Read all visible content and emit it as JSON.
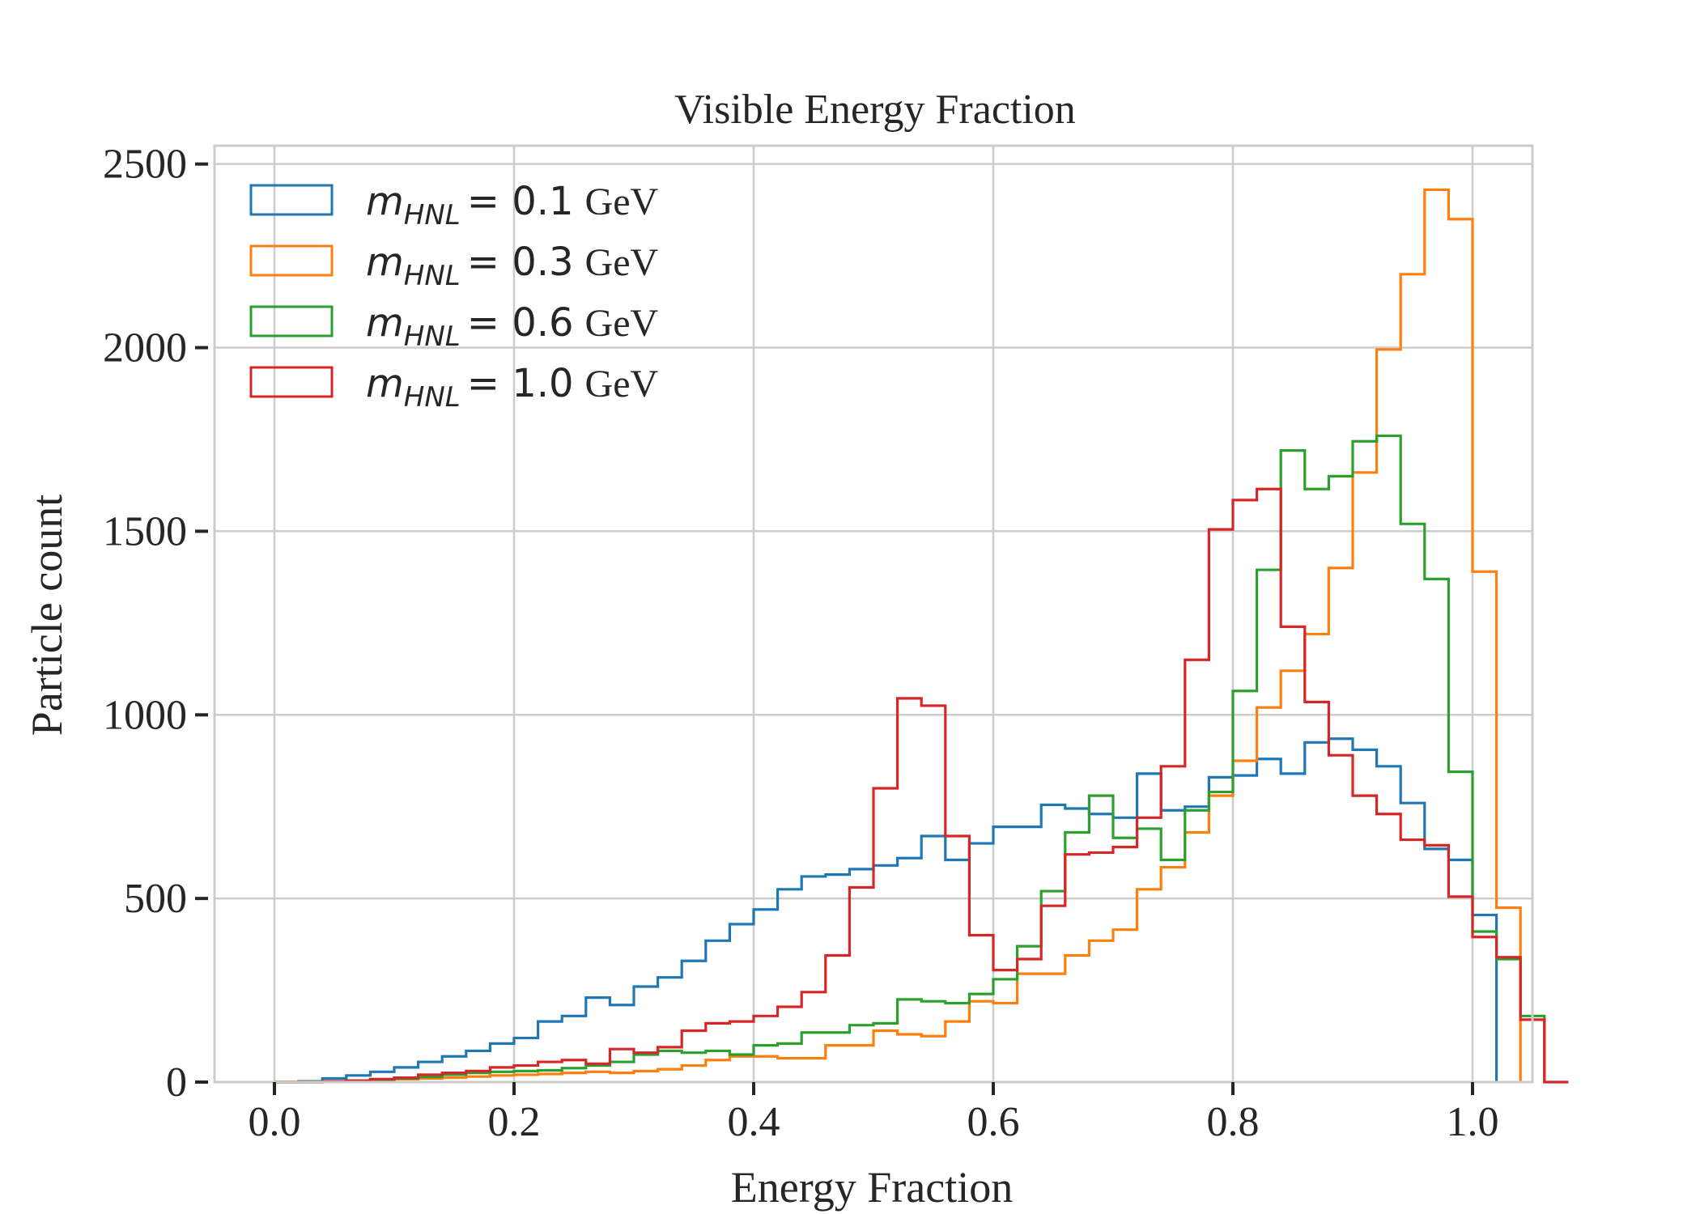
{
  "chart_data": {
    "type": "histogram-step",
    "title": "Visible Energy Fraction",
    "xlabel": "Energy Fraction",
    "ylabel": "Particle count",
    "xlim": [
      -0.05,
      1.05
    ],
    "ylim": [
      0,
      2550
    ],
    "xticks": [
      0.0,
      0.2,
      0.4,
      0.6,
      0.8,
      1.0
    ],
    "xtick_labels": [
      "0.0",
      "0.2",
      "0.4",
      "0.6",
      "0.8",
      "1.0"
    ],
    "yticks": [
      0,
      500,
      1000,
      1500,
      2000,
      2500
    ],
    "ytick_labels": [
      "0",
      "500",
      "1000",
      "1500",
      "2000",
      "2500"
    ],
    "grid": true,
    "legend_position": "top-left",
    "bin_edges_start": 0.0,
    "bin_width": 0.02,
    "series": [
      {
        "name": "m_HNL = 0.1 GeV",
        "label_math": "m",
        "label_sub": "HNL",
        "label_value": "= 0.1",
        "label_unit": "GeV",
        "color": "#1f77b4",
        "values": [
          0,
          2,
          10,
          18,
          28,
          40,
          55,
          70,
          85,
          105,
          120,
          165,
          180,
          230,
          210,
          260,
          285,
          330,
          385,
          430,
          470,
          525,
          560,
          565,
          580,
          590,
          610,
          670,
          605,
          650,
          695,
          695,
          755,
          745,
          730,
          720,
          840,
          740,
          750,
          830,
          835,
          880,
          840,
          925,
          935,
          905,
          860,
          760,
          635,
          605,
          455
        ]
      },
      {
        "name": "m_HNL = 0.3 GeV",
        "label_math": "m",
        "label_sub": "HNL",
        "label_value": "= 0.3",
        "label_unit": "GeV",
        "color": "#ff7f0e",
        "values": [
          0,
          0,
          2,
          4,
          6,
          8,
          10,
          12,
          15,
          18,
          20,
          22,
          25,
          28,
          25,
          30,
          35,
          45,
          60,
          70,
          70,
          65,
          65,
          100,
          100,
          140,
          130,
          125,
          165,
          220,
          215,
          295,
          295,
          345,
          385,
          415,
          525,
          585,
          680,
          780,
          875,
          1020,
          1120,
          1220,
          1400,
          1660,
          1995,
          2200,
          2430,
          2350,
          1390,
          475
        ]
      },
      {
        "name": "m_HNL = 0.6 GeV",
        "label_math": "m",
        "label_sub": "HNL",
        "label_value": "= 0.6",
        "label_unit": "GeV",
        "color": "#2ca02c",
        "values": [
          0,
          0,
          2,
          4,
          6,
          10,
          14,
          20,
          25,
          28,
          30,
          32,
          38,
          45,
          55,
          75,
          85,
          80,
          85,
          75,
          100,
          105,
          135,
          135,
          155,
          160,
          225,
          220,
          215,
          240,
          280,
          370,
          520,
          680,
          780,
          665,
          690,
          605,
          740,
          790,
          1065,
          1395,
          1720,
          1615,
          1650,
          1745,
          1760,
          1520,
          1370,
          845,
          410,
          335,
          180
        ]
      },
      {
        "name": "m_HNL = 1.0 GeV",
        "label_math": "m",
        "label_sub": "HNL",
        "label_value": "= 1.0",
        "label_unit": "GeV",
        "color": "#d62728",
        "values": [
          0,
          0,
          2,
          4,
          8,
          12,
          20,
          25,
          30,
          40,
          45,
          55,
          60,
          50,
          90,
          80,
          95,
          140,
          160,
          165,
          180,
          205,
          245,
          345,
          530,
          800,
          1045,
          1025,
          670,
          400,
          305,
          335,
          480,
          620,
          625,
          640,
          720,
          860,
          1150,
          1505,
          1585,
          1615,
          1240,
          1035,
          890,
          780,
          730,
          660,
          645,
          505,
          395,
          340,
          170,
          0
        ]
      }
    ]
  }
}
